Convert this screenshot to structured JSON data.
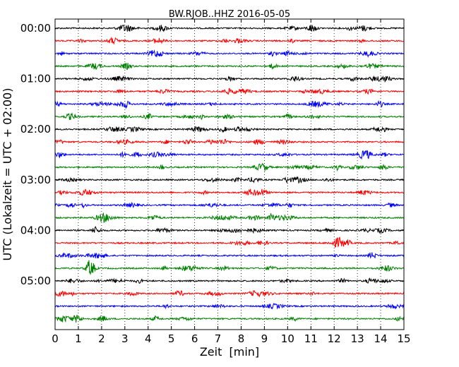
{
  "chart_data": {
    "type": "line",
    "title": "BW.RJOB..HHZ 2016-05-05",
    "xlabel": "Zeit  [min]",
    "ylabel": "UTC (Lokalzeit = UTC + 02:00)",
    "xlim": [
      0,
      15
    ],
    "x_ticks": [
      "0",
      "1",
      "2",
      "3",
      "4",
      "5",
      "6",
      "7",
      "8",
      "9",
      "10",
      "11",
      "12",
      "13",
      "14",
      "15"
    ],
    "y_ticks": [
      "00:00",
      "01:00",
      "02:00",
      "03:00",
      "04:00",
      "05:00"
    ],
    "grid": "vertical dotted",
    "trace_colors": [
      "#000000",
      "#ff0000",
      "#0000ff",
      "#008000"
    ],
    "trace_start_times": [
      "00:00",
      "00:15",
      "00:30",
      "00:45",
      "01:00",
      "01:15",
      "01:30",
      "01:45",
      "02:00",
      "02:15",
      "02:30",
      "02:45",
      "03:00",
      "03:15",
      "03:30",
      "03:45",
      "04:00",
      "04:15",
      "04:30",
      "04:45",
      "05:00",
      "05:15",
      "05:30",
      "05:45"
    ]
  }
}
